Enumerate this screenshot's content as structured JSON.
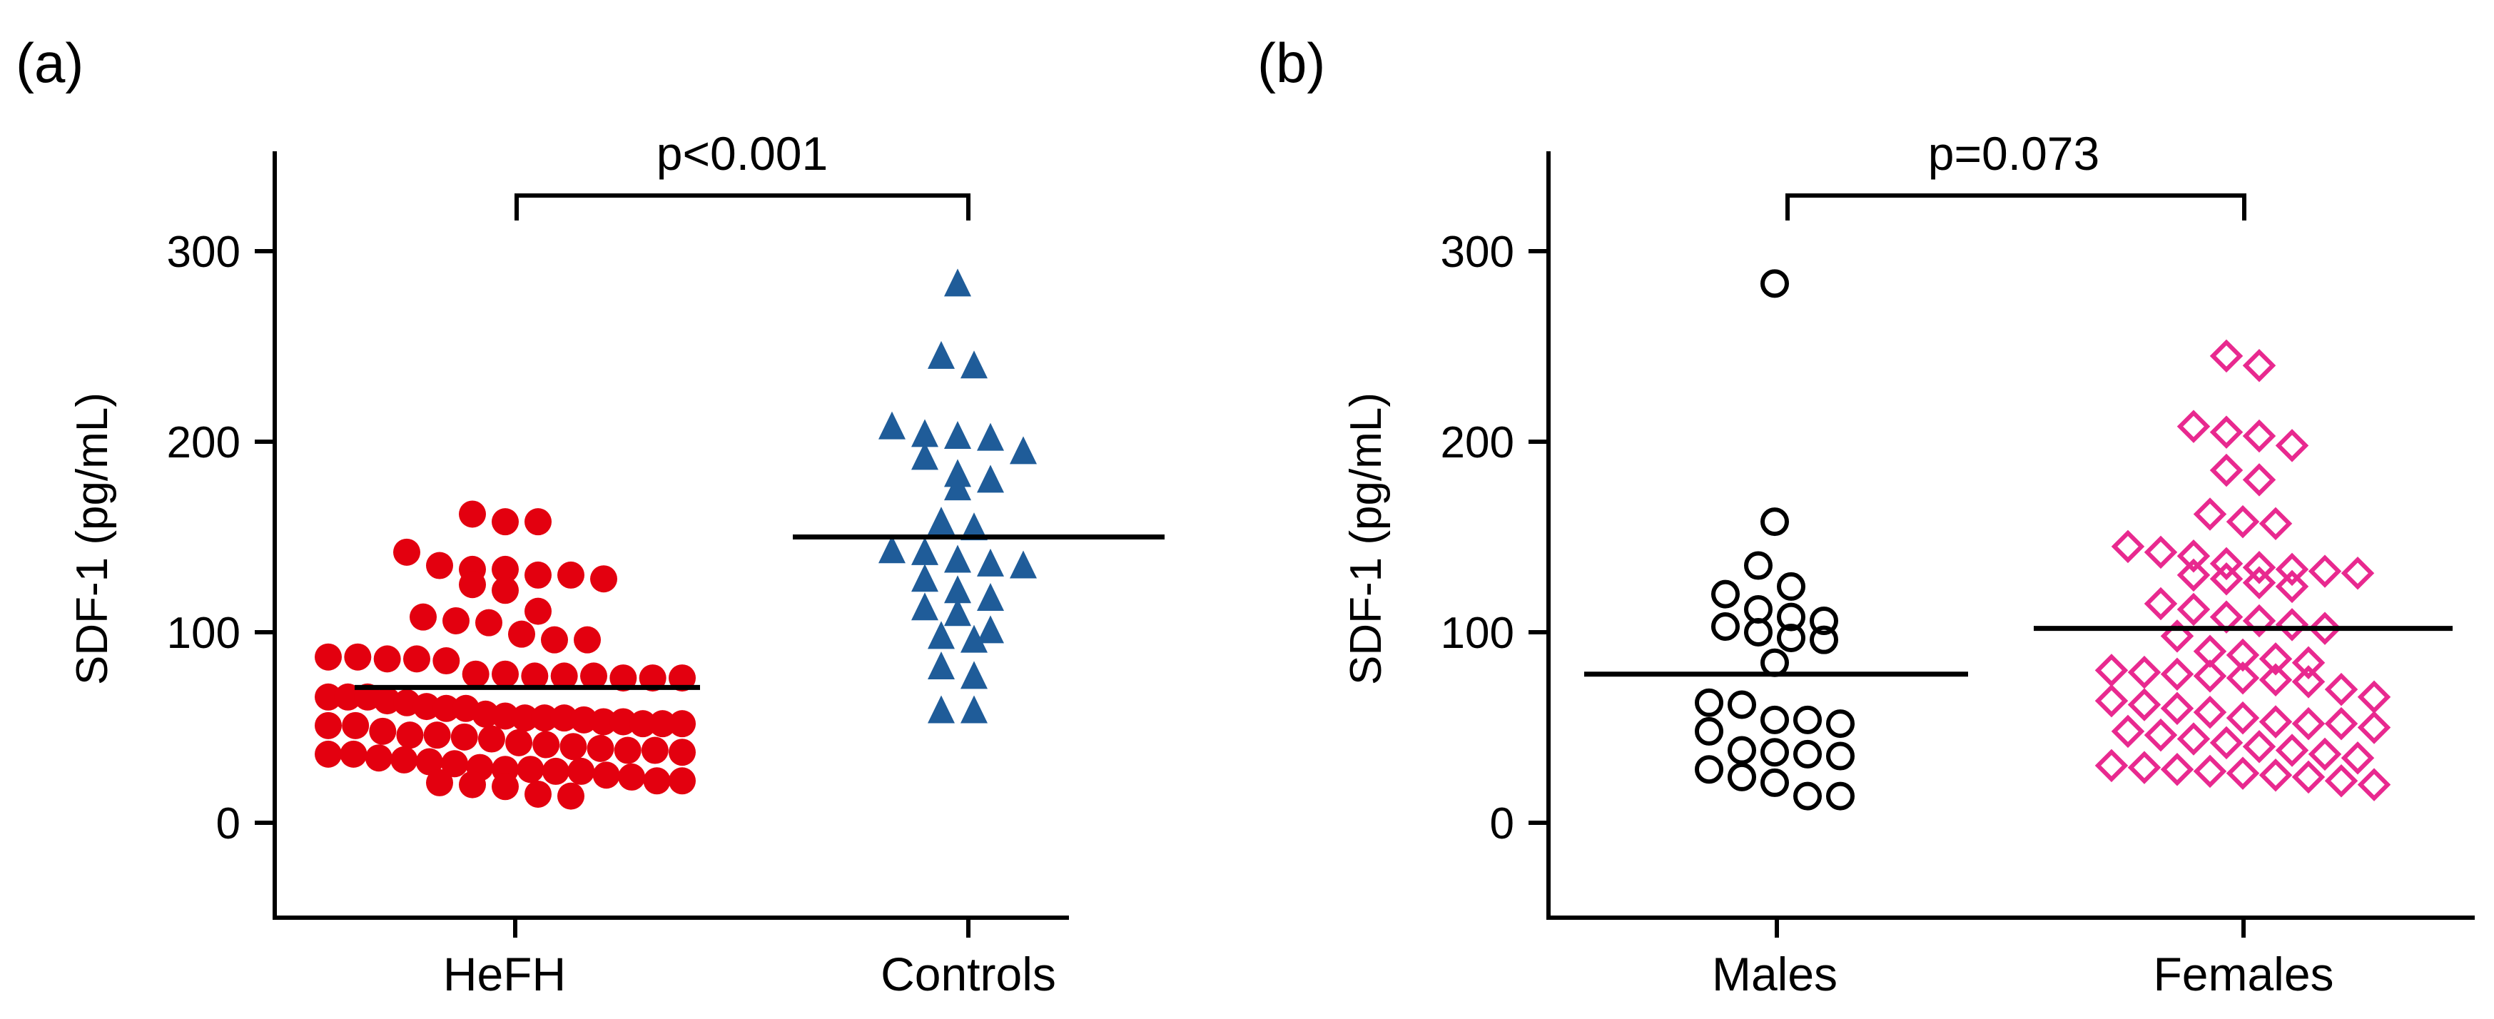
{
  "chart_data": [
    {
      "type": "scatter",
      "panel_label": "(a)",
      "ylabel": "SDF-1 (pg/mL)",
      "ylim": [
        -50,
        350
      ],
      "yticks": [
        0,
        100,
        200,
        300
      ],
      "ytick_labels": [
        "0",
        "100",
        "200",
        "300"
      ],
      "categories": [
        "HeFH",
        "Controls"
      ],
      "significance": "p<0.001",
      "series": [
        {
          "name": "HeFH",
          "marker": "circle-filled",
          "color": "#e3000f",
          "mean": 71,
          "values": [
            158,
            158,
            162,
            135,
            133,
            133,
            142,
            128,
            122,
            125,
            130,
            130,
            108,
            106,
            105,
            96,
            99,
            96,
            111,
            87,
            86,
            87,
            85,
            86,
            76,
            78,
            77,
            76,
            77,
            78,
            76,
            77,
            66,
            66,
            66,
            64,
            63,
            61,
            60,
            60,
            57,
            56,
            55,
            55,
            55,
            54,
            53,
            52,
            52,
            52,
            51,
            51,
            53,
            48,
            46,
            46,
            45,
            44,
            42,
            41,
            40,
            39,
            38,
            38,
            37,
            36,
            36,
            34,
            33,
            32,
            31,
            29,
            28,
            28,
            27,
            27,
            25,
            24,
            22,
            22,
            21,
            20,
            19,
            15,
            14
          ]
        },
        {
          "name": "Controls",
          "marker": "triangle-filled",
          "color": "#1f5c99",
          "mean": 150,
          "values": [
            283,
            245,
            240,
            208,
            202,
            203,
            204,
            195,
            192,
            183,
            180,
            176,
            158,
            155,
            143,
            142,
            138,
            136,
            135,
            128,
            122,
            118,
            113,
            110,
            101,
            98,
            96,
            82,
            77,
            59,
            59
          ]
        }
      ]
    },
    {
      "type": "scatter",
      "panel_label": "(b)",
      "ylabel": "SDF-1 (pg/mL)",
      "ylim": [
        -50,
        350
      ],
      "yticks": [
        0,
        100,
        200,
        300
      ],
      "ytick_labels": [
        "0",
        "100",
        "200",
        "300"
      ],
      "categories": [
        "Males",
        "Females"
      ],
      "significance": "p=0.073",
      "series": [
        {
          "name": "Males",
          "marker": "circle-open",
          "color": "#000000",
          "mean": 78,
          "values": [
            283,
            158,
            135,
            124,
            120,
            112,
            108,
            106,
            103,
            100,
            97,
            96,
            84,
            63,
            62,
            54,
            54,
            52,
            48,
            38,
            37,
            36,
            35,
            28,
            24,
            21,
            14,
            14
          ]
        },
        {
          "name": "Females",
          "marker": "diamond-open",
          "color": "#e8298f",
          "mean": 102,
          "values": [
            245,
            240,
            208,
            205,
            203,
            198,
            185,
            180,
            162,
            158,
            157,
            145,
            142,
            140,
            136,
            134,
            133,
            132,
            131,
            130,
            128,
            126,
            124,
            115,
            112,
            108,
            106,
            104,
            102,
            98,
            90,
            88,
            86,
            84,
            80,
            79,
            78,
            77,
            76,
            75,
            74,
            70,
            66,
            64,
            62,
            60,
            58,
            55,
            53,
            52,
            52,
            50,
            48,
            46,
            44,
            42,
            40,
            38,
            36,
            34,
            30,
            29,
            28,
            27,
            26,
            25,
            24,
            22,
            20
          ]
        }
      ]
    }
  ]
}
